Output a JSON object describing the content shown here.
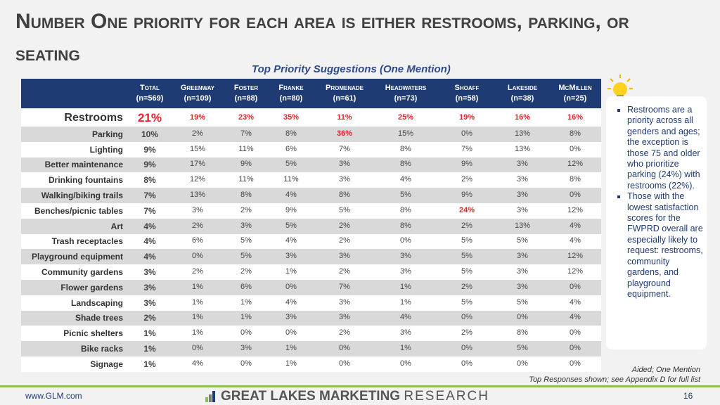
{
  "header": {
    "title": "Number One priority for each area is either restrooms, parking, or seating",
    "subtitle": "Top Priority Suggestions (One Mention)"
  },
  "table": {
    "columns": [
      [
        "Total",
        "(n=569)"
      ],
      [
        "Greenway",
        "(n=109)"
      ],
      [
        "Foster",
        "(n=88)"
      ],
      [
        "Franke",
        "(n=80)"
      ],
      [
        "Promenade",
        "(n=61)"
      ],
      [
        "Headwaters",
        "(n=73)"
      ],
      [
        "Shoaff",
        "(n=58)"
      ],
      [
        "Lakeside",
        "(n=38)"
      ],
      [
        "McMillen",
        "(n=25)"
      ]
    ],
    "rows": [
      [
        "Restrooms",
        "21%",
        "19%",
        "23%",
        "35%",
        "11%",
        "25%",
        "19%",
        "16%",
        "16%"
      ],
      [
        "Parking",
        "10%",
        "2%",
        "7%",
        "8%",
        "36%",
        "15%",
        "0%",
        "13%",
        "8%"
      ],
      [
        "Lighting",
        "9%",
        "15%",
        "11%",
        "6%",
        "7%",
        "8%",
        "7%",
        "13%",
        "0%"
      ],
      [
        "Better maintenance",
        "9%",
        "17%",
        "9%",
        "5%",
        "3%",
        "8%",
        "9%",
        "3%",
        "12%"
      ],
      [
        "Drinking fountains",
        "8%",
        "12%",
        "11%",
        "11%",
        "3%",
        "4%",
        "2%",
        "3%",
        "8%"
      ],
      [
        "Walking/biking trails",
        "7%",
        "13%",
        "8%",
        "4%",
        "8%",
        "5%",
        "9%",
        "3%",
        "0%"
      ],
      [
        "Benches/picnic tables",
        "7%",
        "3%",
        "2%",
        "9%",
        "5%",
        "8%",
        "24%",
        "3%",
        "12%"
      ],
      [
        "Art",
        "4%",
        "2%",
        "3%",
        "5%",
        "2%",
        "8%",
        "2%",
        "13%",
        "4%"
      ],
      [
        "Trash receptacles",
        "4%",
        "6%",
        "5%",
        "4%",
        "2%",
        "0%",
        "5%",
        "5%",
        "4%"
      ],
      [
        "Playground equipment",
        "4%",
        "0%",
        "5%",
        "3%",
        "3%",
        "3%",
        "5%",
        "3%",
        "12%"
      ],
      [
        "Community gardens",
        "3%",
        "2%",
        "2%",
        "1%",
        "2%",
        "3%",
        "5%",
        "3%",
        "12%"
      ],
      [
        "Flower gardens",
        "3%",
        "1%",
        "6%",
        "0%",
        "7%",
        "1%",
        "2%",
        "3%",
        "0%"
      ],
      [
        "Landscaping",
        "3%",
        "1%",
        "1%",
        "4%",
        "3%",
        "1%",
        "5%",
        "5%",
        "4%"
      ],
      [
        "Shade trees",
        "2%",
        "1%",
        "1%",
        "3%",
        "3%",
        "4%",
        "0%",
        "0%",
        "4%"
      ],
      [
        "Picnic shelters",
        "1%",
        "1%",
        "0%",
        "0%",
        "2%",
        "3%",
        "2%",
        "8%",
        "0%"
      ],
      [
        "Bike racks",
        "1%",
        "0%",
        "3%",
        "1%",
        "0%",
        "1%",
        "0%",
        "5%",
        "0%"
      ],
      [
        "Signage",
        "1%",
        "4%",
        "0%",
        "1%",
        "0%",
        "0%",
        "0%",
        "0%",
        "0%"
      ]
    ]
  },
  "notes": [
    "Restrooms are a priority across all genders and ages; the exception is those 75 and older who prioritize parking (24%) with restrooms (22%).",
    "Those with the lowest satisfaction scores for the FWPRD overall are especially likely to request: restrooms, community gardens, and playground equipment."
  ],
  "footnotes": [
    "Aided; One Mention",
    "Top Responses shown; see Appendix D for full list"
  ],
  "footer": {
    "url": "www.GLM.com",
    "logo_bold": "GREAT LAKES MARKETING",
    "logo_light": "RESEARCH",
    "page": "16"
  }
}
